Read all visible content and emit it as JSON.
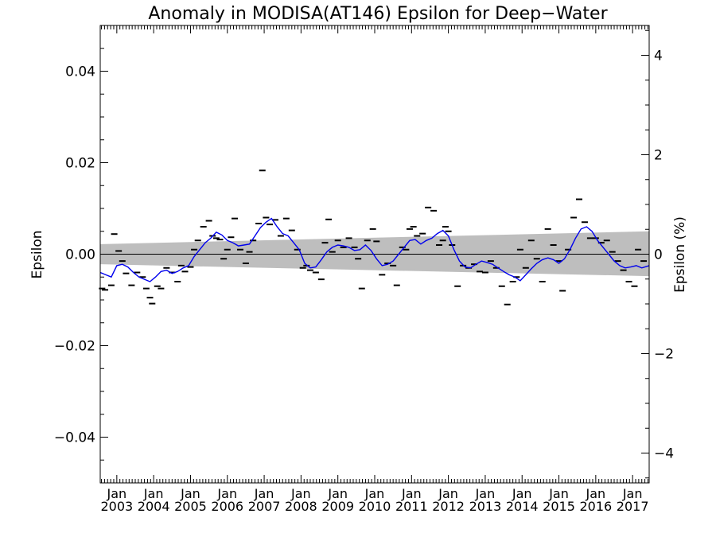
{
  "chart_data": {
    "type": "line",
    "title": "Anomaly in MODISA(AT146) Epsilon for Deep−Water",
    "ylabel": "Epsilon",
    "y2label": "Epsilon (%)",
    "xlabel": "",
    "xlim": [
      2002.55,
      2017.45
    ],
    "ylim": [
      -0.05,
      0.05
    ],
    "y2lim": [
      -4.6,
      4.6
    ],
    "yticks": [
      {
        "value": -0.04,
        "label": "−0.04"
      },
      {
        "value": -0.02,
        "label": "−0.02"
      },
      {
        "value": 0.0,
        "label": "0.00"
      },
      {
        "value": 0.02,
        "label": "0.02"
      },
      {
        "value": 0.04,
        "label": "0.04"
      }
    ],
    "y2ticks": [
      {
        "value": -4,
        "label": "−4"
      },
      {
        "value": -2,
        "label": "−2"
      },
      {
        "value": 0,
        "label": "0"
      },
      {
        "value": 2,
        "label": "2"
      },
      {
        "value": 4,
        "label": "4"
      }
    ],
    "month_label": "Jan",
    "xticks": [
      {
        "value": 2003.0,
        "label": "2003"
      },
      {
        "value": 2004.0,
        "label": "2004"
      },
      {
        "value": 2005.0,
        "label": "2005"
      },
      {
        "value": 2006.0,
        "label": "2006"
      },
      {
        "value": 2007.0,
        "label": "2007"
      },
      {
        "value": 2008.0,
        "label": "2008"
      },
      {
        "value": 2009.0,
        "label": "2009"
      },
      {
        "value": 2010.0,
        "label": "2010"
      },
      {
        "value": 2011.0,
        "label": "2011"
      },
      {
        "value": 2012.0,
        "label": "2012"
      },
      {
        "value": 2013.0,
        "label": "2013"
      },
      {
        "value": 2014.0,
        "label": "2014"
      },
      {
        "value": 2015.0,
        "label": "2015"
      },
      {
        "value": 2016.0,
        "label": "2016"
      },
      {
        "value": 2017.0,
        "label": "2017"
      }
    ],
    "zero_line": 0.0,
    "band": {
      "color": "#bebebe",
      "upper": [
        [
          2002.55,
          0.0022
        ],
        [
          2017.45,
          0.005
        ]
      ],
      "lower": [
        [
          2002.55,
          -0.0022
        ],
        [
          2017.45,
          -0.0048
        ]
      ]
    },
    "series": [
      {
        "style": "dash-markers",
        "color": "#000000",
        "x": [
          2002.6,
          2002.68,
          2002.85,
          2002.93,
          2003.05,
          2003.15,
          2003.25,
          2003.4,
          2003.55,
          2003.7,
          2003.8,
          2003.9,
          2003.96,
          2004.1,
          2004.2,
          2004.35,
          2004.5,
          2004.65,
          2004.75,
          2004.85,
          2005.0,
          2005.1,
          2005.2,
          2005.35,
          2005.5,
          2005.6,
          2005.7,
          2005.8,
          2005.9,
          2006.0,
          2006.1,
          2006.2,
          2006.35,
          2006.5,
          2006.6,
          2006.7,
          2006.85,
          2006.95,
          2007.05,
          2007.15,
          2007.3,
          2007.45,
          2007.6,
          2007.75,
          2007.9,
          2008.05,
          2008.15,
          2008.25,
          2008.4,
          2008.55,
          2008.65,
          2008.75,
          2008.85,
          2009.0,
          2009.15,
          2009.3,
          2009.45,
          2009.55,
          2009.65,
          2009.8,
          2009.95,
          2010.05,
          2010.2,
          2010.35,
          2010.5,
          2010.6,
          2010.75,
          2010.85,
          2010.95,
          2011.05,
          2011.15,
          2011.3,
          2011.45,
          2011.6,
          2011.75,
          2011.85,
          2011.92,
          2012.0,
          2012.1,
          2012.25,
          2012.4,
          2012.55,
          2012.7,
          2012.85,
          2013.0,
          2013.15,
          2013.3,
          2013.45,
          2013.6,
          2013.75,
          2013.85,
          2013.95,
          2014.1,
          2014.25,
          2014.4,
          2014.55,
          2014.7,
          2014.85,
          2015.0,
          2015.1,
          2015.25,
          2015.4,
          2015.55,
          2015.7,
          2015.85,
          2016.0,
          2016.15,
          2016.3,
          2016.45,
          2016.6,
          2016.75,
          2016.9,
          2017.05,
          2017.15,
          2017.3
        ],
        "y": [
          -0.0075,
          -0.0078,
          -0.0068,
          0.0044,
          0.0007,
          -0.0015,
          -0.0042,
          -0.0068,
          -0.004,
          -0.005,
          -0.0075,
          -0.0095,
          -0.0108,
          -0.007,
          -0.0075,
          -0.003,
          -0.004,
          -0.006,
          -0.0025,
          -0.0038,
          -0.0028,
          0.001,
          0.003,
          0.006,
          0.0073,
          0.004,
          0.0035,
          0.0032,
          -0.001,
          0.001,
          0.0037,
          0.0078,
          0.001,
          -0.002,
          0.0005,
          0.003,
          0.0067,
          0.0183,
          0.008,
          0.0065,
          0.0075,
          0.004,
          0.0078,
          0.0052,
          0.001,
          -0.003,
          -0.0025,
          -0.0035,
          -0.004,
          -0.0055,
          0.0025,
          0.0076,
          0.0005,
          0.003,
          0.0015,
          0.0035,
          0.0015,
          -0.001,
          -0.0075,
          0.003,
          0.0055,
          0.0028,
          -0.0045,
          -0.002,
          -0.0025,
          -0.0068,
          0.0015,
          0.001,
          0.0055,
          0.006,
          0.004,
          0.0045,
          0.0102,
          0.0095,
          0.002,
          0.003,
          0.006,
          0.005,
          0.002,
          -0.007,
          -0.0025,
          -0.003,
          -0.0022,
          -0.0038,
          -0.004,
          -0.0015,
          -0.003,
          -0.007,
          -0.011,
          -0.006,
          -0.005,
          0.001,
          -0.003,
          0.003,
          -0.001,
          -0.006,
          0.0055,
          0.002,
          -0.0015,
          -0.008,
          0.001,
          0.008,
          0.012,
          0.007,
          0.0035,
          0.0035,
          0.0025,
          0.003,
          0.0005,
          -0.0015,
          -0.0035,
          -0.006,
          -0.007,
          0.001,
          -0.0015
        ]
      },
      {
        "style": "line",
        "color": "#0000ee",
        "x": [
          2002.55,
          2002.7,
          2002.85,
          2003.0,
          2003.15,
          2003.3,
          2003.45,
          2003.6,
          2003.75,
          2003.9,
          2004.05,
          2004.2,
          2004.35,
          2004.5,
          2004.65,
          2004.8,
          2004.95,
          2005.1,
          2005.25,
          2005.4,
          2005.55,
          2005.7,
          2005.85,
          2006.0,
          2006.15,
          2006.3,
          2006.45,
          2006.6,
          2006.75,
          2006.9,
          2007.05,
          2007.2,
          2007.35,
          2007.5,
          2007.65,
          2007.8,
          2007.95,
          2008.1,
          2008.25,
          2008.4,
          2008.55,
          2008.7,
          2008.85,
          2009.0,
          2009.15,
          2009.3,
          2009.45,
          2009.6,
          2009.75,
          2009.9,
          2010.05,
          2010.2,
          2010.35,
          2010.5,
          2010.65,
          2010.8,
          2010.95,
          2011.1,
          2011.25,
          2011.4,
          2011.55,
          2011.7,
          2011.85,
          2012.0,
          2012.15,
          2012.3,
          2012.45,
          2012.6,
          2012.75,
          2012.9,
          2013.05,
          2013.2,
          2013.35,
          2013.5,
          2013.65,
          2013.8,
          2013.95,
          2014.1,
          2014.25,
          2014.4,
          2014.55,
          2014.7,
          2014.85,
          2015.0,
          2015.15,
          2015.3,
          2015.45,
          2015.6,
          2015.75,
          2015.9,
          2016.05,
          2016.2,
          2016.35,
          2016.5,
          2016.65,
          2016.8,
          2016.95,
          2017.1,
          2017.25,
          2017.45
        ],
        "y": [
          -0.004,
          -0.0045,
          -0.005,
          -0.0025,
          -0.0022,
          -0.0028,
          -0.004,
          -0.005,
          -0.0055,
          -0.006,
          -0.005,
          -0.0038,
          -0.0035,
          -0.0042,
          -0.0038,
          -0.003,
          -0.0025,
          -0.0005,
          0.001,
          0.0025,
          0.0035,
          0.0048,
          0.0042,
          0.003,
          0.0025,
          0.0018,
          0.002,
          0.0022,
          0.004,
          0.0058,
          0.007,
          0.0078,
          0.006,
          0.0045,
          0.004,
          0.0025,
          0.001,
          -0.002,
          -0.003,
          -0.0028,
          -0.0012,
          0.0005,
          0.0015,
          0.002,
          0.0018,
          0.0015,
          0.0008,
          0.001,
          0.002,
          0.0008,
          -0.001,
          -0.0025,
          -0.0022,
          -0.0015,
          0.0,
          0.0015,
          0.003,
          0.0032,
          0.0022,
          0.003,
          0.0035,
          0.0045,
          0.0052,
          0.004,
          0.001,
          -0.0015,
          -0.0028,
          -0.003,
          -0.0022,
          -0.0015,
          -0.0018,
          -0.0022,
          -0.003,
          -0.0038,
          -0.0045,
          -0.005,
          -0.0058,
          -0.0045,
          -0.0032,
          -0.002,
          -0.0012,
          -0.0008,
          -0.0012,
          -0.002,
          -0.001,
          0.001,
          0.0035,
          0.0055,
          0.006,
          0.005,
          0.003,
          0.0015,
          0.0,
          -0.0015,
          -0.0025,
          -0.003,
          -0.0028,
          -0.0025,
          -0.003,
          -0.0025
        ]
      }
    ]
  }
}
